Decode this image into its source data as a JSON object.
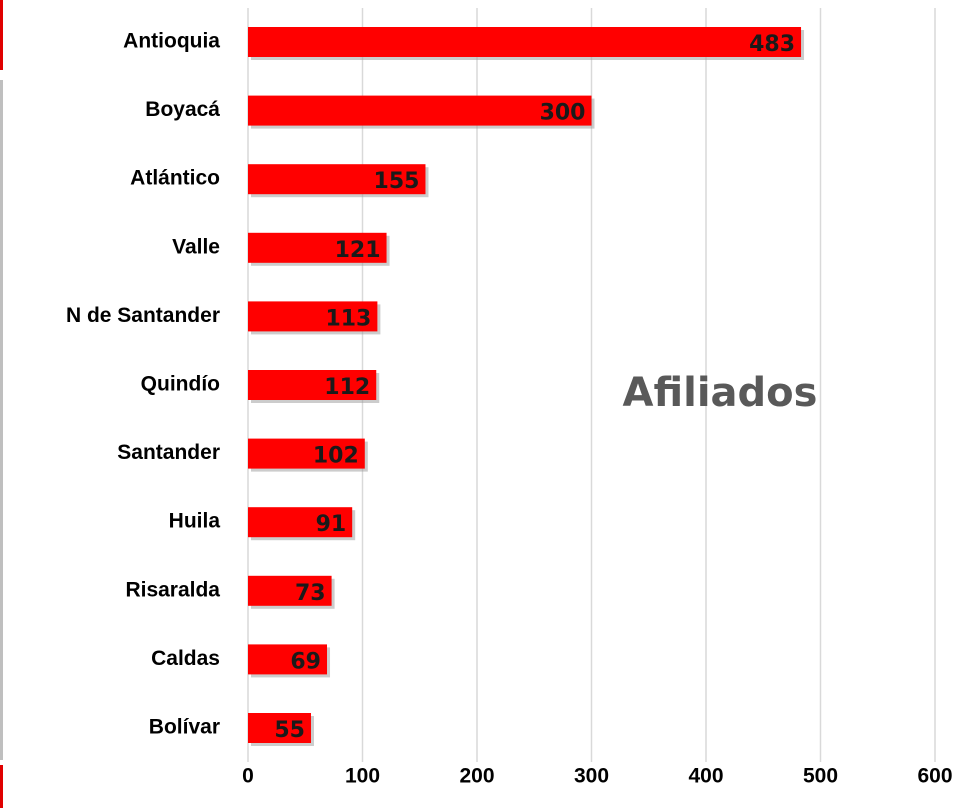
{
  "chart_data": {
    "type": "bar",
    "orientation": "horizontal",
    "annotation": "Afiliados",
    "categories": [
      "Antioquia",
      "Boyacá",
      "Atlántico",
      "Valle",
      "N de Santander",
      "Quindío",
      "Santander",
      "Huila",
      "Risaralda",
      "Caldas",
      "Bolívar"
    ],
    "values": [
      483,
      300,
      155,
      121,
      113,
      112,
      102,
      91,
      73,
      69,
      55
    ],
    "color": "#ff0000",
    "xlim": [
      0,
      600
    ],
    "xticks": [
      0,
      100,
      200,
      300,
      400,
      500,
      600
    ],
    "grid": true
  }
}
